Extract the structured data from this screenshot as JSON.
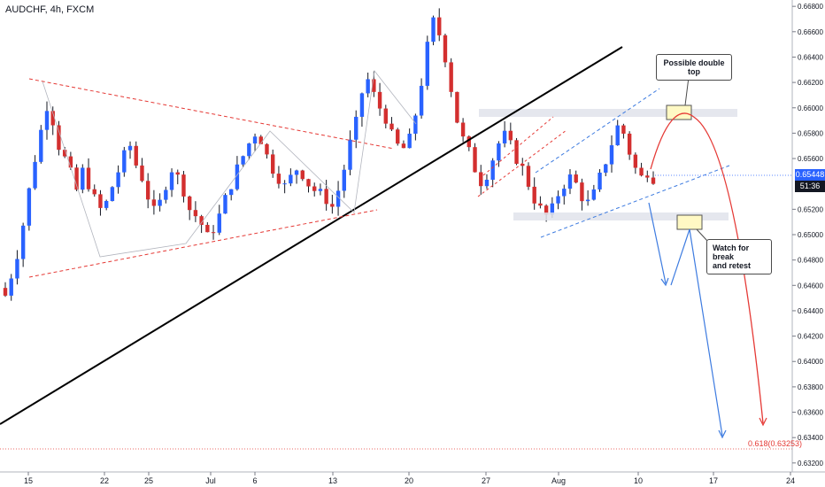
{
  "header": {
    "symbol_title": "AUDCHF, 4h, FXCM"
  },
  "price_axis": {
    "ticks": [
      "0.66800",
      "0.66600",
      "0.66400",
      "0.66200",
      "0.66000",
      "0.65800",
      "0.65600",
      "0.65200",
      "0.65000",
      "0.64800",
      "0.64600",
      "0.64400",
      "0.64200",
      "0.64000",
      "0.63800",
      "0.63600",
      "0.63400",
      "0.63200"
    ],
    "current_price": "0.65448",
    "countdown": "51:36"
  },
  "time_axis": {
    "labels": [
      "15",
      "22",
      "25",
      "Jul",
      "6",
      "13",
      "20",
      "27",
      "Aug",
      "10",
      "17",
      "24"
    ]
  },
  "annotations": {
    "double_top_note": "Possible double top",
    "break_retest_note_line1": "Watch for break",
    "break_retest_note_line2": "and retest",
    "fib_label": "0.618(0.63253)"
  },
  "colors": {
    "up_candle": "#2962ff",
    "down_candle": "#d32f2f",
    "trendline": "#000000",
    "red_projection": "#e53935",
    "blue_projection": "#3d7be0",
    "current_price_tag": "#2962ff",
    "countdown_tag": "#131722"
  },
  "chart_data": {
    "type": "candlestick",
    "symbol": "AUDCHF",
    "timeframe": "4h",
    "source": "FXCM",
    "ylim": [
      0.6315,
      0.6685
    ],
    "price_ticks": [
      0.668,
      0.666,
      0.664,
      0.662,
      0.66,
      0.658,
      0.656,
      0.652,
      0.65,
      0.648,
      0.646,
      0.644,
      0.642,
      0.64,
      0.638,
      0.636,
      0.634,
      0.632
    ],
    "time_labels": [
      "15",
      "22",
      "25",
      "Jul",
      "6",
      "13",
      "20",
      "27",
      "Aug",
      "10",
      "17",
      "24"
    ],
    "close_path": [
      0.6452,
      0.6468,
      0.6485,
      0.6508,
      0.6535,
      0.656,
      0.6582,
      0.6602,
      0.659,
      0.657,
      0.656,
      0.6548,
      0.6535,
      0.655,
      0.654,
      0.6528,
      0.652,
      0.6525,
      0.6538,
      0.655,
      0.6562,
      0.657,
      0.6555,
      0.6545,
      0.653,
      0.6518,
      0.6525,
      0.654,
      0.6552,
      0.6545,
      0.6535,
      0.652,
      0.6515,
      0.6508,
      0.6498,
      0.6505,
      0.6515,
      0.6528,
      0.654,
      0.6552,
      0.6562,
      0.6572,
      0.658,
      0.6575,
      0.6562,
      0.6552,
      0.6545,
      0.6538,
      0.6545,
      0.6552,
      0.6548,
      0.654,
      0.6535,
      0.6532,
      0.6528,
      0.6522,
      0.6535,
      0.6552,
      0.6572,
      0.6588,
      0.6612,
      0.6622,
      0.661,
      0.66,
      0.6592,
      0.6578,
      0.657,
      0.6568,
      0.6575,
      0.6595,
      0.662,
      0.6648,
      0.6668,
      0.6658,
      0.664,
      0.6615,
      0.659,
      0.6575,
      0.6565,
      0.6552,
      0.6542,
      0.6548,
      0.656,
      0.6572,
      0.6578,
      0.657,
      0.656,
      0.6552,
      0.654,
      0.6528,
      0.652,
      0.6515,
      0.652,
      0.6532,
      0.654,
      0.6545,
      0.654,
      0.653,
      0.6525,
      0.6532,
      0.6545,
      0.6558,
      0.6572,
      0.6585,
      0.658,
      0.6565,
      0.6552,
      0.6545,
      0.655,
      0.6545
    ],
    "trendlines": [
      {
        "name": "rising support",
        "from": [
          "15",
          0.6305
        ],
        "to": [
          "10",
          0.6645
        ]
      },
      {
        "name": "descending resistance",
        "from": [
          "15",
          0.6622
        ],
        "to": [
          "20",
          0.6565
        ]
      },
      {
        "name": "ascending triangle support",
        "from": [
          "15",
          0.6462
        ],
        "to": [
          "13",
          0.6515
        ]
      }
    ],
    "zones": [
      {
        "name": "double top resistance",
        "level": 0.6592
      },
      {
        "name": "channel support",
        "level": 0.651
      }
    ],
    "fib_level": {
      "label": "0.618(0.63253)",
      "value": 0.63253
    },
    "current_price": 0.65448
  }
}
